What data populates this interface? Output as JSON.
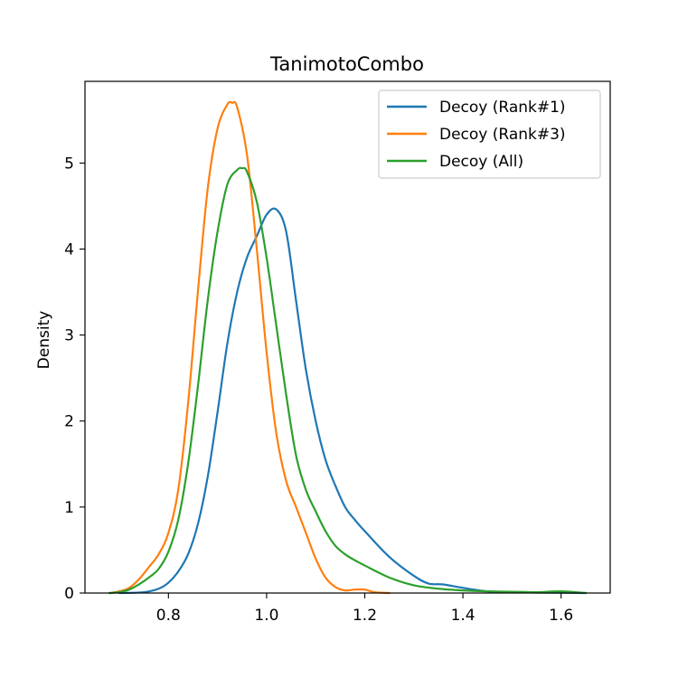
{
  "chart_data": {
    "type": "line",
    "title": "TanimotoCombo",
    "xlabel": "",
    "ylabel": "Density",
    "xlim": [
      0.63,
      1.7
    ],
    "ylim": [
      0,
      5.95
    ],
    "xticks": [
      0.8,
      1.0,
      1.2,
      1.4,
      1.6
    ],
    "xtick_labels": [
      "0.8",
      "1.0",
      "1.2",
      "1.4",
      "1.6"
    ],
    "yticks": [
      0,
      1,
      2,
      3,
      4,
      5
    ],
    "ytick_labels": [
      "0",
      "1",
      "2",
      "3",
      "4",
      "5"
    ],
    "grid": false,
    "legend_position": "top-right",
    "series": [
      {
        "name": "Decoy (Rank#1)",
        "color": "#1f77b4",
        "x": [
          0.7,
          0.75,
          0.78,
          0.8,
          0.82,
          0.84,
          0.86,
          0.88,
          0.9,
          0.92,
          0.94,
          0.96,
          0.98,
          1.0,
          1.02,
          1.04,
          1.06,
          1.08,
          1.1,
          1.12,
          1.14,
          1.16,
          1.18,
          1.2,
          1.25,
          1.3,
          1.33,
          1.36,
          1.4,
          1.45,
          1.5,
          1.55,
          1.6,
          1.65
        ],
        "y": [
          0.0,
          0.01,
          0.05,
          0.12,
          0.25,
          0.45,
          0.8,
          1.35,
          2.1,
          2.9,
          3.5,
          3.9,
          4.15,
          4.4,
          4.46,
          4.2,
          3.4,
          2.6,
          2.0,
          1.55,
          1.25,
          1.0,
          0.85,
          0.72,
          0.42,
          0.2,
          0.11,
          0.1,
          0.06,
          0.02,
          0.01,
          0.005,
          0.003,
          0.0
        ]
      },
      {
        "name": "Decoy (Rank#3)",
        "color": "#ff7f0e",
        "x": [
          0.68,
          0.7,
          0.72,
          0.74,
          0.76,
          0.78,
          0.8,
          0.82,
          0.84,
          0.86,
          0.88,
          0.9,
          0.92,
          0.93,
          0.94,
          0.96,
          0.98,
          1.0,
          1.02,
          1.04,
          1.06,
          1.08,
          1.1,
          1.12,
          1.14,
          1.16,
          1.18,
          1.2,
          1.22,
          1.25
        ],
        "y": [
          0.0,
          0.02,
          0.06,
          0.16,
          0.3,
          0.45,
          0.7,
          1.2,
          2.2,
          3.5,
          4.7,
          5.4,
          5.68,
          5.7,
          5.65,
          5.1,
          4.0,
          2.8,
          1.85,
          1.3,
          1.0,
          0.7,
          0.4,
          0.18,
          0.07,
          0.03,
          0.04,
          0.04,
          0.01,
          0.0
        ]
      },
      {
        "name": "Decoy (All)",
        "color": "#2ca02c",
        "x": [
          0.68,
          0.7,
          0.72,
          0.74,
          0.76,
          0.78,
          0.8,
          0.82,
          0.84,
          0.86,
          0.88,
          0.9,
          0.92,
          0.94,
          0.95,
          0.96,
          0.98,
          1.0,
          1.02,
          1.04,
          1.06,
          1.08,
          1.1,
          1.12,
          1.14,
          1.16,
          1.18,
          1.2,
          1.25,
          1.3,
          1.35,
          1.4,
          1.45,
          1.5,
          1.55,
          1.6,
          1.65
        ],
        "y": [
          0.0,
          0.01,
          0.04,
          0.1,
          0.18,
          0.28,
          0.48,
          0.85,
          1.5,
          2.4,
          3.4,
          4.2,
          4.75,
          4.92,
          4.94,
          4.9,
          4.55,
          3.9,
          3.1,
          2.3,
          1.6,
          1.2,
          0.95,
          0.72,
          0.55,
          0.45,
          0.38,
          0.32,
          0.18,
          0.09,
          0.05,
          0.03,
          0.02,
          0.015,
          0.01,
          0.02,
          0.0
        ]
      }
    ]
  }
}
